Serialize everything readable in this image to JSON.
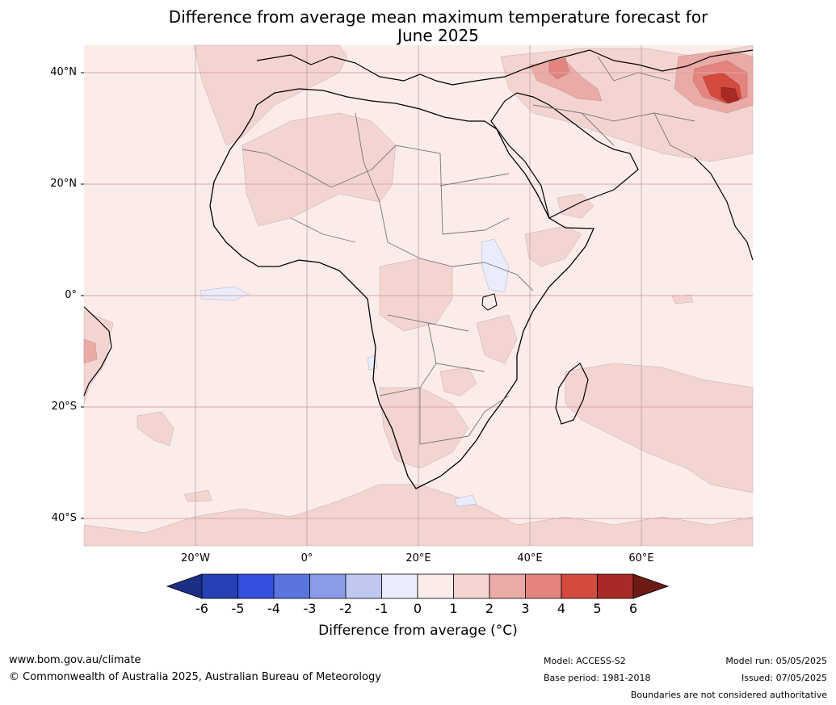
{
  "title_line1": "Difference from average mean maximum temperature forecast for",
  "title_line2": "June 2025",
  "lat_labels": [
    "40°N",
    "20°N",
    "0°",
    "20°S",
    "40°S"
  ],
  "lon_labels": [
    "20°W",
    "0°",
    "20°E",
    "40°E",
    "60°E"
  ],
  "colorbar": {
    "ticks": [
      "-6",
      "-5",
      "-4",
      "-3",
      "-2",
      "-1",
      "0",
      "1",
      "2",
      "3",
      "4",
      "5",
      "6"
    ],
    "colors": [
      "#1a2f85",
      "#2640b5",
      "#3350e0",
      "#5a74e0",
      "#8a9ce8",
      "#c0c8f2",
      "#e9ecfb",
      "#fbecea",
      "#f4d4d1",
      "#eaaaa6",
      "#e4847e",
      "#d54a3f",
      "#a82a24",
      "#6e1a14"
    ],
    "label": "Difference from average (°C)"
  },
  "footer": {
    "url": "www.bom.gov.au/climate",
    "copyright": "© Commonwealth of Australia 2025, Australian Bureau of Meteorology",
    "model": "Model: ACCESS-S2",
    "base_period": "Base period: 1981-2018",
    "model_run": "Model run: 05/05/2025",
    "issued": "Issued: 07/05/2025",
    "disclaimer": "Boundaries are not considered authoritative"
  }
}
